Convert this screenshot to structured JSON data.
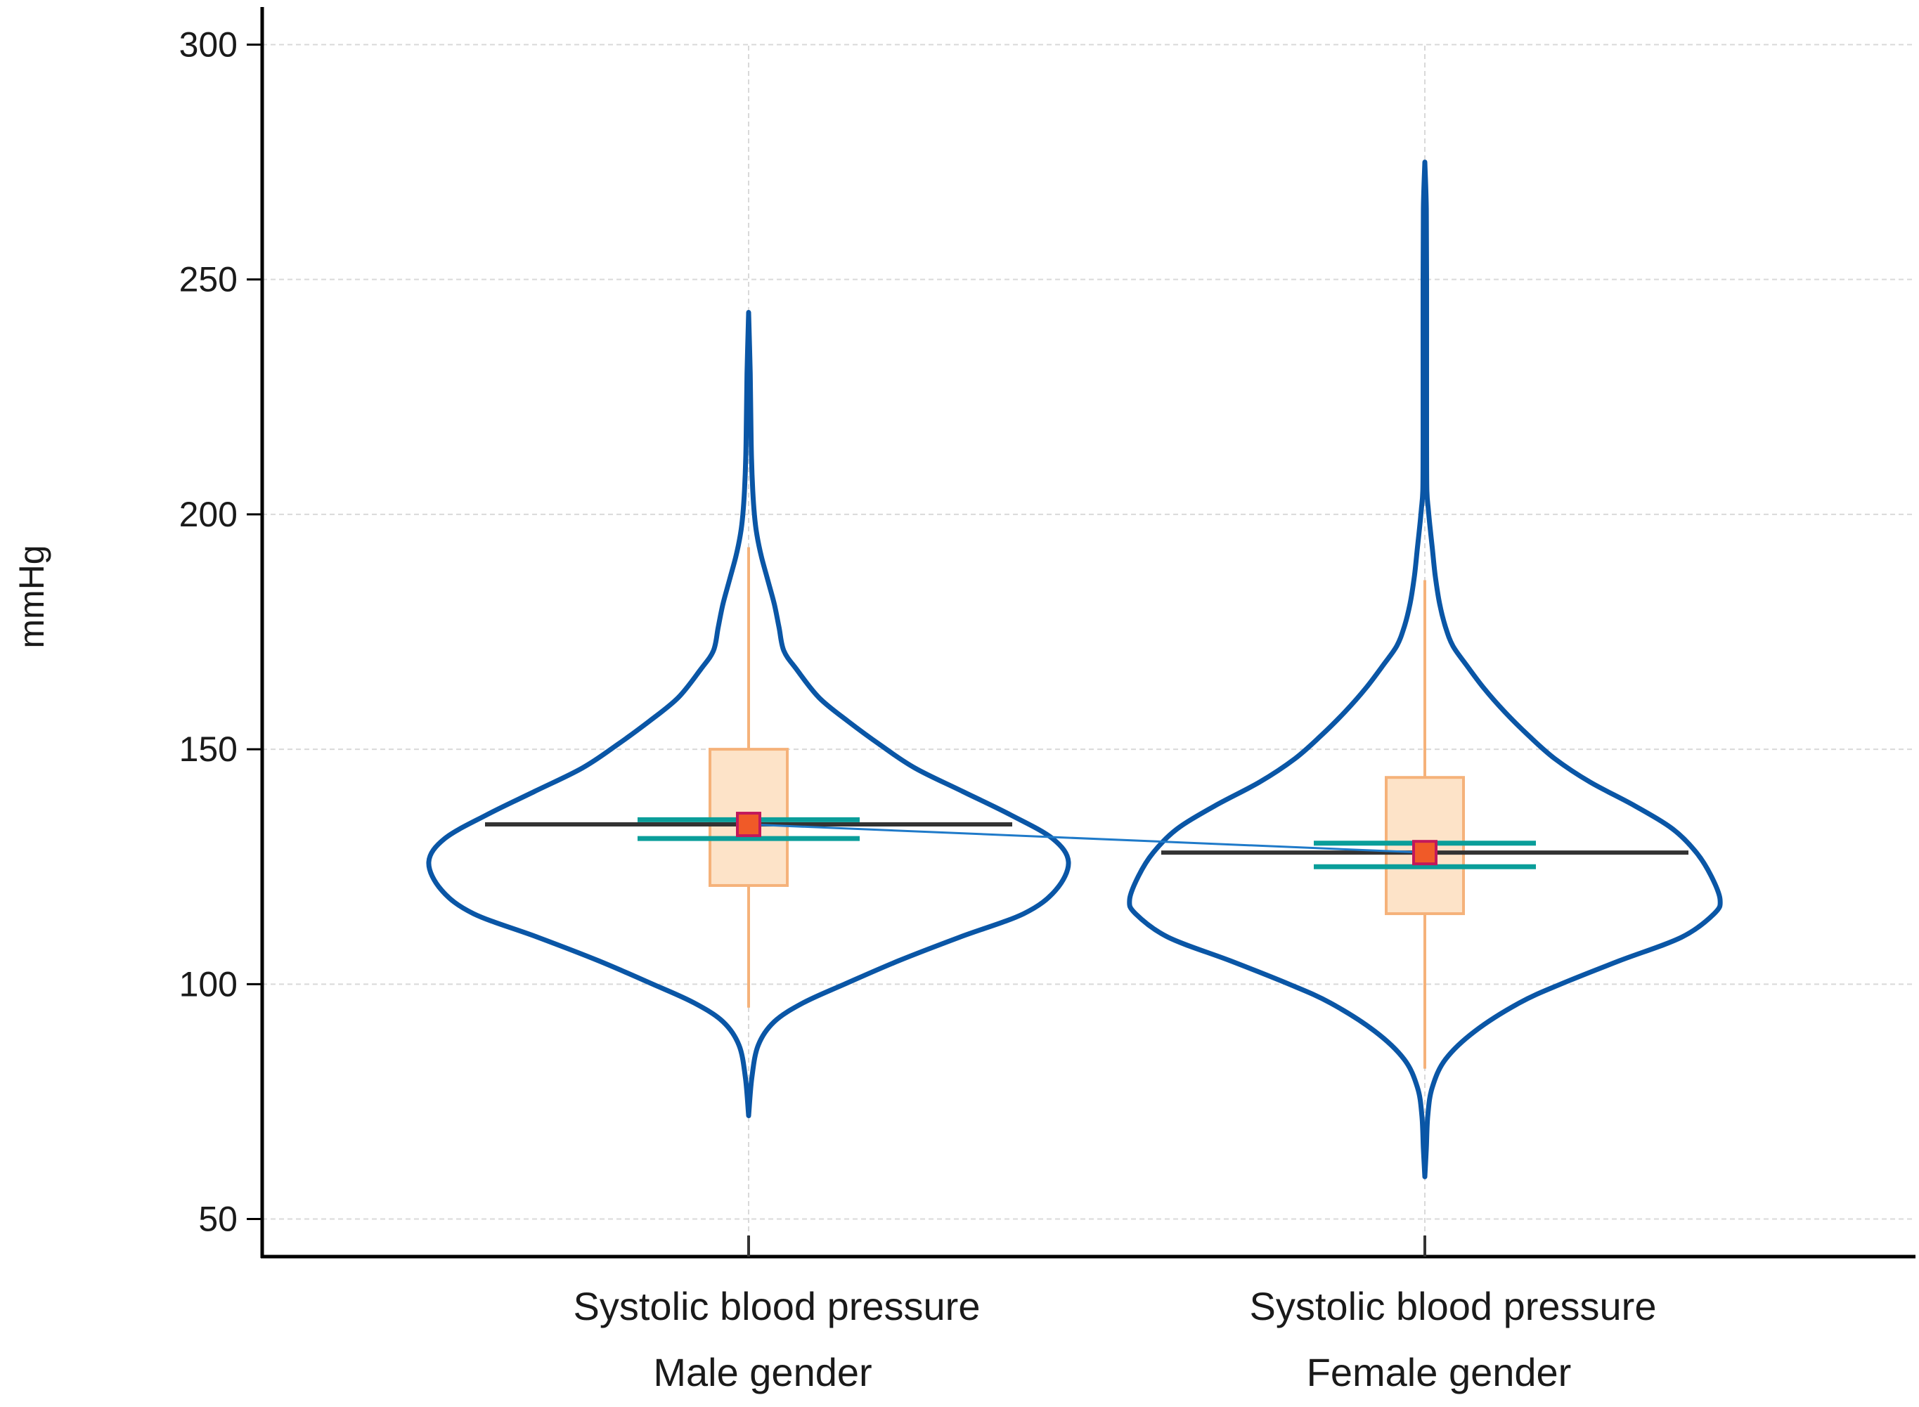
{
  "chart_data": {
    "type": "violin",
    "ylabel": "mmHg",
    "ylim": [
      42,
      308
    ],
    "yticks": [
      50,
      100,
      150,
      200,
      250,
      300
    ],
    "grid": true,
    "colors": {
      "violin": "#0a56a6",
      "box_fill": "#fde3c8",
      "box_stroke": "#f5b27a",
      "whisker": "#f5b27a",
      "mean_line": "#333333",
      "ci": "#0a9e9a",
      "marker_fill": "#f05a28",
      "marker_stroke": "#c2185b",
      "connector": "#1f7ac9",
      "grid": "#d9d9d9",
      "axis": "#000000"
    },
    "groups": [
      {
        "line1": "Systolic blood pressure",
        "line2": "Male gender",
        "min": 72,
        "max": 243,
        "q1": 121,
        "median": 134,
        "q3": 150,
        "whisker_low": 95,
        "whisker_high": 193,
        "mean": 134,
        "ci": [
          131,
          135
        ],
        "violin_profile": [
          [
            72,
            0.0
          ],
          [
            80,
            0.01
          ],
          [
            87,
            0.03
          ],
          [
            92,
            0.08
          ],
          [
            96,
            0.17
          ],
          [
            100,
            0.3
          ],
          [
            105,
            0.47
          ],
          [
            110,
            0.66
          ],
          [
            115,
            0.86
          ],
          [
            120,
            0.96
          ],
          [
            126,
            1.0
          ],
          [
            131,
            0.95
          ],
          [
            136,
            0.82
          ],
          [
            141,
            0.67
          ],
          [
            146,
            0.52
          ],
          [
            151,
            0.41
          ],
          [
            156,
            0.31
          ],
          [
            161,
            0.22
          ],
          [
            167,
            0.15
          ],
          [
            171,
            0.11
          ],
          [
            176,
            0.095
          ],
          [
            181,
            0.08
          ],
          [
            186,
            0.06
          ],
          [
            191,
            0.04
          ],
          [
            196,
            0.025
          ],
          [
            200,
            0.018
          ],
          [
            205,
            0.013
          ],
          [
            212,
            0.009
          ],
          [
            220,
            0.007
          ],
          [
            230,
            0.005
          ],
          [
            243,
            0.0
          ]
        ]
      },
      {
        "line1": "Systolic blood pressure",
        "line2": "Female gender",
        "min": 59,
        "max": 275,
        "q1": 115,
        "median": 128,
        "q3": 144,
        "whisker_low": 82,
        "whisker_high": 186,
        "mean": 128,
        "ci": [
          125,
          130
        ],
        "violin_profile": [
          [
            59,
            0.0
          ],
          [
            65,
            0.005
          ],
          [
            72,
            0.01
          ],
          [
            78,
            0.025
          ],
          [
            84,
            0.07
          ],
          [
            90,
            0.17
          ],
          [
            96,
            0.32
          ],
          [
            100,
            0.46
          ],
          [
            105,
            0.66
          ],
          [
            110,
            0.87
          ],
          [
            115,
            0.98
          ],
          [
            118,
            1.0
          ],
          [
            123,
            0.97
          ],
          [
            128,
            0.92
          ],
          [
            133,
            0.84
          ],
          [
            138,
            0.71
          ],
          [
            143,
            0.56
          ],
          [
            148,
            0.44
          ],
          [
            153,
            0.35
          ],
          [
            158,
            0.27
          ],
          [
            163,
            0.2
          ],
          [
            168,
            0.14
          ],
          [
            172,
            0.095
          ],
          [
            176,
            0.07
          ],
          [
            181,
            0.05
          ],
          [
            187,
            0.035
          ],
          [
            193,
            0.025
          ],
          [
            197,
            0.018
          ],
          [
            201,
            0.012
          ],
          [
            205,
            0.007
          ],
          [
            215,
            0.006
          ],
          [
            230,
            0.006
          ],
          [
            250,
            0.006
          ],
          [
            265,
            0.005
          ],
          [
            275,
            0.0
          ]
        ]
      }
    ]
  }
}
